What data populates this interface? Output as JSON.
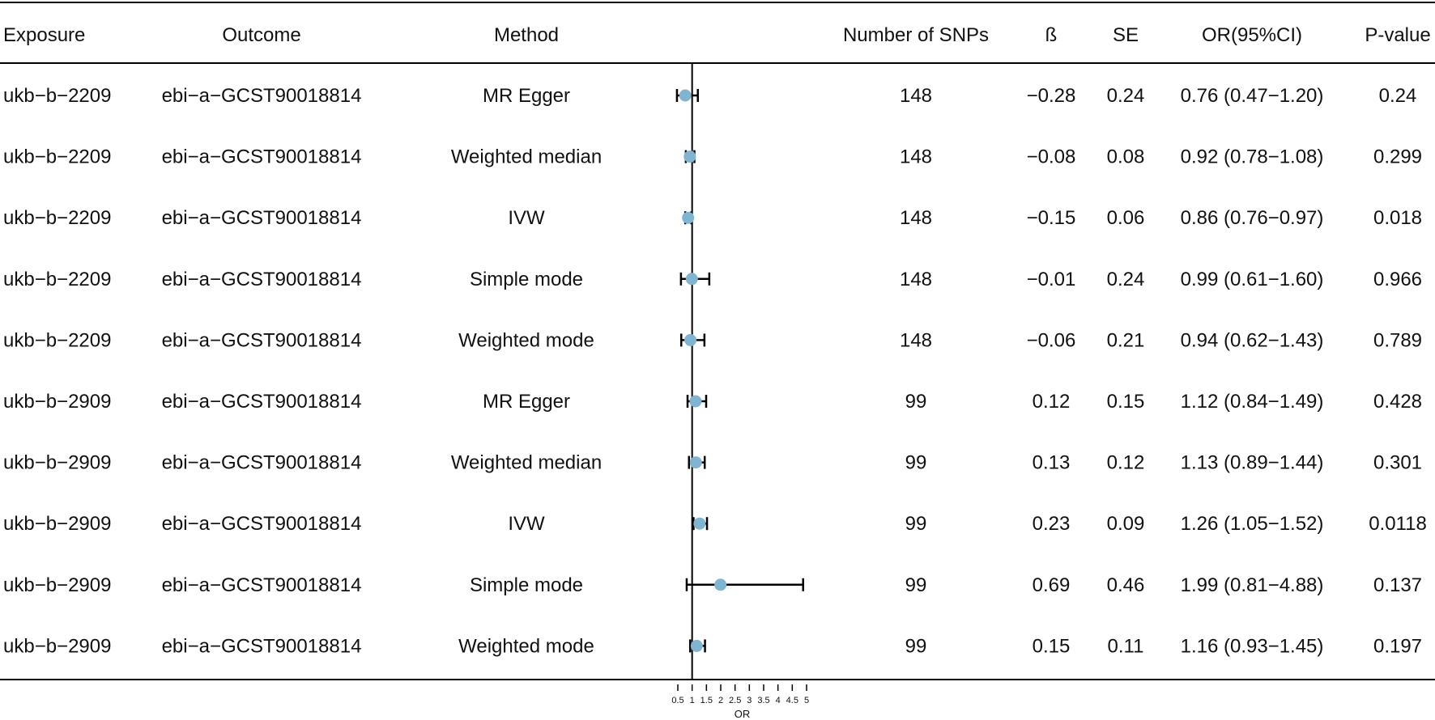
{
  "table": {
    "headers": {
      "exposure": "Exposure",
      "outcome": "Outcome",
      "method": "Method",
      "nsnp": "Number of SNPs",
      "beta": "ß",
      "se": "SE",
      "or_ci": "OR(95%CI)",
      "pval": "P-value"
    },
    "rows": [
      {
        "exposure": "ukb−b−2209",
        "outcome": "ebi−a−GCST90018814",
        "method": "MR Egger",
        "nsnp": "148",
        "beta": "−0.28",
        "se": "0.24",
        "or_ci": "0.76 (0.47−1.20)",
        "pval": "0.24"
      },
      {
        "exposure": "ukb−b−2209",
        "outcome": "ebi−a−GCST90018814",
        "method": "Weighted median",
        "nsnp": "148",
        "beta": "−0.08",
        "se": "0.08",
        "or_ci": "0.92 (0.78−1.08)",
        "pval": "0.299"
      },
      {
        "exposure": "ukb−b−2209",
        "outcome": "ebi−a−GCST90018814",
        "method": "IVW",
        "nsnp": "148",
        "beta": "−0.15",
        "se": "0.06",
        "or_ci": "0.86 (0.76−0.97)",
        "pval": "0.018"
      },
      {
        "exposure": "ukb−b−2209",
        "outcome": "ebi−a−GCST90018814",
        "method": "Simple mode",
        "nsnp": "148",
        "beta": "−0.01",
        "se": "0.24",
        "or_ci": "0.99 (0.61−1.60)",
        "pval": "0.966"
      },
      {
        "exposure": "ukb−b−2209",
        "outcome": "ebi−a−GCST90018814",
        "method": "Weighted mode",
        "nsnp": "148",
        "beta": "−0.06",
        "se": "0.21",
        "or_ci": "0.94 (0.62−1.43)",
        "pval": "0.789"
      },
      {
        "exposure": "ukb−b−2909",
        "outcome": "ebi−a−GCST90018814",
        "method": "MR Egger",
        "nsnp": "99",
        "beta": "0.12",
        "se": "0.15",
        "or_ci": "1.12 (0.84−1.49)",
        "pval": "0.428"
      },
      {
        "exposure": "ukb−b−2909",
        "outcome": "ebi−a−GCST90018814",
        "method": "Weighted median",
        "nsnp": "99",
        "beta": "0.13",
        "se": "0.12",
        "or_ci": "1.13 (0.89−1.44)",
        "pval": "0.301"
      },
      {
        "exposure": "ukb−b−2909",
        "outcome": "ebi−a−GCST90018814",
        "method": "IVW",
        "nsnp": "99",
        "beta": "0.23",
        "se": "0.09",
        "or_ci": "1.26 (1.05−1.52)",
        "pval": "0.0118"
      },
      {
        "exposure": "ukb−b−2909",
        "outcome": "ebi−a−GCST90018814",
        "method": "Simple mode",
        "nsnp": "99",
        "beta": "0.69",
        "se": "0.46",
        "or_ci": "1.99 (0.81−4.88)",
        "pval": "0.137"
      },
      {
        "exposure": "ukb−b−2909",
        "outcome": "ebi−a−GCST90018814",
        "method": "Weighted mode",
        "nsnp": "99",
        "beta": "0.15",
        "se": "0.11",
        "or_ci": "1.16 (0.93−1.45)",
        "pval": "0.197"
      }
    ]
  },
  "chart_data": {
    "type": "forest",
    "xlabel": "OR",
    "xlim": [
      0.5,
      5
    ],
    "xticks": [
      0.5,
      1,
      1.5,
      2,
      2.5,
      3,
      3.5,
      4,
      4.5,
      5
    ],
    "xtick_labels": [
      "0.5",
      "1",
      "1.5",
      "2",
      "2.5",
      "3",
      "3.5",
      "4",
      "4.5",
      "5"
    ],
    "reference_line": 1,
    "point_color": "#7fb5d0",
    "series": [
      {
        "or": 0.76,
        "lower": 0.47,
        "upper": 1.2
      },
      {
        "or": 0.92,
        "lower": 0.78,
        "upper": 1.08
      },
      {
        "or": 0.86,
        "lower": 0.76,
        "upper": 0.97
      },
      {
        "or": 0.99,
        "lower": 0.61,
        "upper": 1.6
      },
      {
        "or": 0.94,
        "lower": 0.62,
        "upper": 1.43
      },
      {
        "or": 1.12,
        "lower": 0.84,
        "upper": 1.49
      },
      {
        "or": 1.13,
        "lower": 0.89,
        "upper": 1.44
      },
      {
        "or": 1.26,
        "lower": 1.05,
        "upper": 1.52
      },
      {
        "or": 1.99,
        "lower": 0.81,
        "upper": 4.88
      },
      {
        "or": 1.16,
        "lower": 0.93,
        "upper": 1.45
      }
    ]
  }
}
